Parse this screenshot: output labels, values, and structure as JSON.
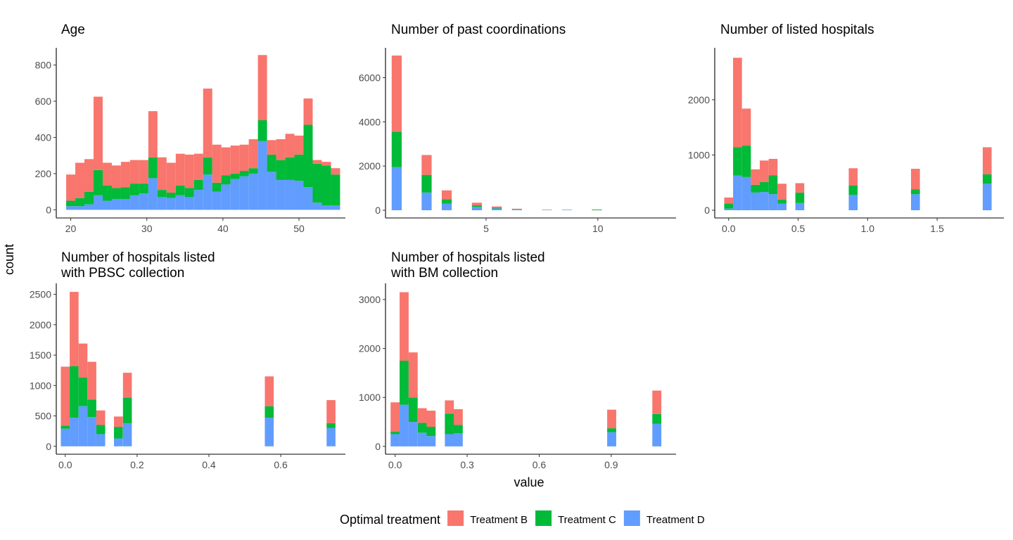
{
  "chart_data": {
    "type": "bar",
    "stacked": true,
    "facet_layout": "3 columns x 2 rows",
    "ylabel": "count",
    "xlabel": "value",
    "legend": {
      "title": "Optimal treatment",
      "position": "bottom",
      "entries": [
        {
          "name": "Treatment B",
          "color": "#F8766D"
        },
        {
          "name": "Treatment C",
          "color": "#00BA38"
        },
        {
          "name": "Treatment D",
          "color": "#619CFF"
        }
      ]
    },
    "stack_order": [
      "Treatment D",
      "Treatment C",
      "Treatment B"
    ],
    "panels": [
      {
        "title": [
          "Age"
        ],
        "xlim": [
          18.1,
          56.1
        ],
        "ylim": [
          -45,
          895
        ],
        "xticks": [
          20,
          30,
          40,
          50
        ],
        "xtick_labels": [
          "20",
          "30",
          "40",
          "50"
        ],
        "yticks": [
          0,
          200,
          400,
          600,
          800
        ],
        "ytick_labels": [
          "0",
          "200",
          "400",
          "600",
          "800"
        ],
        "bin_width": 1.2,
        "bins": [
          {
            "x": 20.0,
            "D": 20,
            "C": 30,
            "B": 145
          },
          {
            "x": 21.2,
            "D": 20,
            "C": 45,
            "B": 195
          },
          {
            "x": 22.4,
            "D": 30,
            "C": 70,
            "B": 180
          },
          {
            "x": 23.6,
            "D": 80,
            "C": 140,
            "B": 405
          },
          {
            "x": 24.8,
            "D": 50,
            "C": 85,
            "B": 125
          },
          {
            "x": 26.0,
            "D": 60,
            "C": 60,
            "B": 125
          },
          {
            "x": 27.2,
            "D": 60,
            "C": 65,
            "B": 140
          },
          {
            "x": 28.4,
            "D": 80,
            "C": 65,
            "B": 130
          },
          {
            "x": 29.6,
            "D": 90,
            "C": 55,
            "B": 130
          },
          {
            "x": 30.8,
            "D": 175,
            "C": 115,
            "B": 255
          },
          {
            "x": 32.0,
            "D": 70,
            "C": 40,
            "B": 180
          },
          {
            "x": 33.2,
            "D": 65,
            "C": 30,
            "B": 165
          },
          {
            "x": 34.4,
            "D": 80,
            "C": 55,
            "B": 175
          },
          {
            "x": 35.6,
            "D": 70,
            "C": 50,
            "B": 185
          },
          {
            "x": 36.8,
            "D": 110,
            "C": 55,
            "B": 145
          },
          {
            "x": 38.0,
            "D": 195,
            "C": 95,
            "B": 380
          },
          {
            "x": 39.2,
            "D": 100,
            "C": 50,
            "B": 210
          },
          {
            "x": 40.4,
            "D": 140,
            "C": 50,
            "B": 155
          },
          {
            "x": 41.6,
            "D": 170,
            "C": 30,
            "B": 155
          },
          {
            "x": 42.8,
            "D": 185,
            "C": 30,
            "B": 145
          },
          {
            "x": 44.0,
            "D": 200,
            "C": 30,
            "B": 160
          },
          {
            "x": 45.2,
            "D": 380,
            "C": 115,
            "B": 360
          },
          {
            "x": 46.4,
            "D": 210,
            "C": 95,
            "B": 80
          },
          {
            "x": 47.6,
            "D": 165,
            "C": 110,
            "B": 115
          },
          {
            "x": 48.8,
            "D": 165,
            "C": 125,
            "B": 130
          },
          {
            "x": 50.0,
            "D": 160,
            "C": 145,
            "B": 105
          },
          {
            "x": 51.2,
            "D": 125,
            "C": 345,
            "B": 145
          },
          {
            "x": 52.4,
            "D": 40,
            "C": 215,
            "B": 20
          },
          {
            "x": 53.6,
            "D": 25,
            "C": 220,
            "B": 20
          },
          {
            "x": 54.8,
            "D": 25,
            "C": 170,
            "B": 35
          }
        ]
      },
      {
        "title": [
          "Number of past coordinations"
        ],
        "xlim": [
          0.5,
          13.5
        ],
        "ylim": [
          -350,
          7350
        ],
        "xticks": [
          5,
          10
        ],
        "xtick_labels": [
          "5",
          "10"
        ],
        "yticks": [
          0,
          2000,
          4000,
          6000
        ],
        "ytick_labels": [
          "0",
          "2000",
          "4000",
          "6000"
        ],
        "bin_width": 0.448,
        "bins": [
          {
            "x": 1.0,
            "D": 1950,
            "C": 1600,
            "B": 3450
          },
          {
            "x": 2.34,
            "D": 800,
            "C": 800,
            "B": 900
          },
          {
            "x": 3.24,
            "D": 300,
            "C": 200,
            "B": 400
          },
          {
            "x": 4.59,
            "D": 150,
            "C": 70,
            "B": 120
          },
          {
            "x": 5.48,
            "D": 80,
            "C": 30,
            "B": 60
          },
          {
            "x": 6.38,
            "D": 40,
            "C": 10,
            "B": 20
          },
          {
            "x": 7.72,
            "D": 15,
            "C": 5,
            "B": 5
          },
          {
            "x": 8.62,
            "D": 15,
            "C": 5,
            "B": 5
          },
          {
            "x": 9.96,
            "D": 0,
            "C": 30,
            "B": 0
          }
        ]
      },
      {
        "title": [
          "Number of listed hospitals"
        ],
        "xlim": [
          -0.1,
          1.98
        ],
        "ylim": [
          -140,
          2940
        ],
        "xticks": [
          0.0,
          0.5,
          1.0,
          1.5
        ],
        "xtick_labels": [
          "0.0",
          "0.5",
          "1.0",
          "1.5"
        ],
        "yticks": [
          0,
          1000,
          2000
        ],
        "ytick_labels": [
          "0",
          "1000",
          "2000"
        ],
        "bin_width": 0.0639,
        "bins": [
          {
            "x": 0.0,
            "D": 30,
            "C": 90,
            "B": 110
          },
          {
            "x": 0.064,
            "D": 630,
            "C": 510,
            "B": 1620
          },
          {
            "x": 0.128,
            "D": 600,
            "C": 570,
            "B": 670
          },
          {
            "x": 0.192,
            "D": 320,
            "C": 140,
            "B": 280
          },
          {
            "x": 0.256,
            "D": 330,
            "C": 180,
            "B": 390
          },
          {
            "x": 0.32,
            "D": 290,
            "C": 340,
            "B": 300
          },
          {
            "x": 0.384,
            "D": 120,
            "C": 70,
            "B": 290
          },
          {
            "x": 0.512,
            "D": 130,
            "C": 190,
            "B": 170
          },
          {
            "x": 0.896,
            "D": 280,
            "C": 170,
            "B": 310
          },
          {
            "x": 1.344,
            "D": 290,
            "C": 90,
            "B": 370
          },
          {
            "x": 1.86,
            "D": 480,
            "C": 170,
            "B": 490
          }
        ]
      },
      {
        "title": [
          "Number of hospitals listed",
          "with PBSC collection"
        ],
        "xlim": [
          -0.025,
          0.78
        ],
        "ylim": [
          -130,
          2680
        ],
        "xticks": [
          0.0,
          0.2,
          0.4,
          0.6
        ],
        "xtick_labels": [
          "0.0",
          "0.2",
          "0.4",
          "0.6"
        ],
        "yticks": [
          0,
          500,
          1000,
          1500,
          2000,
          2500
        ],
        "ytick_labels": [
          "0",
          "500",
          "1000",
          "1500",
          "2000",
          "2500"
        ],
        "bin_width": 0.0247,
        "bins": [
          {
            "x": 0.0,
            "D": 290,
            "C": 50,
            "B": 970
          },
          {
            "x": 0.0247,
            "D": 470,
            "C": 850,
            "B": 1220
          },
          {
            "x": 0.0494,
            "D": 660,
            "C": 470,
            "B": 560
          },
          {
            "x": 0.0741,
            "D": 480,
            "C": 290,
            "B": 620
          },
          {
            "x": 0.0988,
            "D": 200,
            "C": 150,
            "B": 240
          },
          {
            "x": 0.148,
            "D": 130,
            "C": 190,
            "B": 170
          },
          {
            "x": 0.173,
            "D": 380,
            "C": 420,
            "B": 410
          },
          {
            "x": 0.568,
            "D": 470,
            "C": 190,
            "B": 490
          },
          {
            "x": 0.74,
            "D": 300,
            "C": 80,
            "B": 380
          }
        ]
      },
      {
        "title": [
          "Number of hospitals listed",
          "with BM collection"
        ],
        "xlim": [
          -0.04,
          1.17
        ],
        "ylim": [
          -160,
          3330
        ],
        "xticks": [
          0.0,
          0.3,
          0.6,
          0.9
        ],
        "xtick_labels": [
          "0.0",
          "0.3",
          "0.6",
          "0.9"
        ],
        "yticks": [
          0,
          1000,
          2000,
          3000
        ],
        "ytick_labels": [
          "0",
          "1000",
          "2000",
          "3000"
        ],
        "bin_width": 0.0376,
        "bins": [
          {
            "x": 0.0,
            "D": 250,
            "C": 50,
            "B": 600
          },
          {
            "x": 0.0376,
            "D": 850,
            "C": 900,
            "B": 1400
          },
          {
            "x": 0.0752,
            "D": 500,
            "C": 500,
            "B": 920
          },
          {
            "x": 0.113,
            "D": 280,
            "C": 200,
            "B": 300
          },
          {
            "x": 0.15,
            "D": 210,
            "C": 190,
            "B": 330
          },
          {
            "x": 0.226,
            "D": 250,
            "C": 420,
            "B": 270
          },
          {
            "x": 0.263,
            "D": 270,
            "C": 170,
            "B": 320
          },
          {
            "x": 0.902,
            "D": 290,
            "C": 80,
            "B": 380
          },
          {
            "x": 1.09,
            "D": 460,
            "C": 200,
            "B": 480
          }
        ]
      }
    ]
  }
}
